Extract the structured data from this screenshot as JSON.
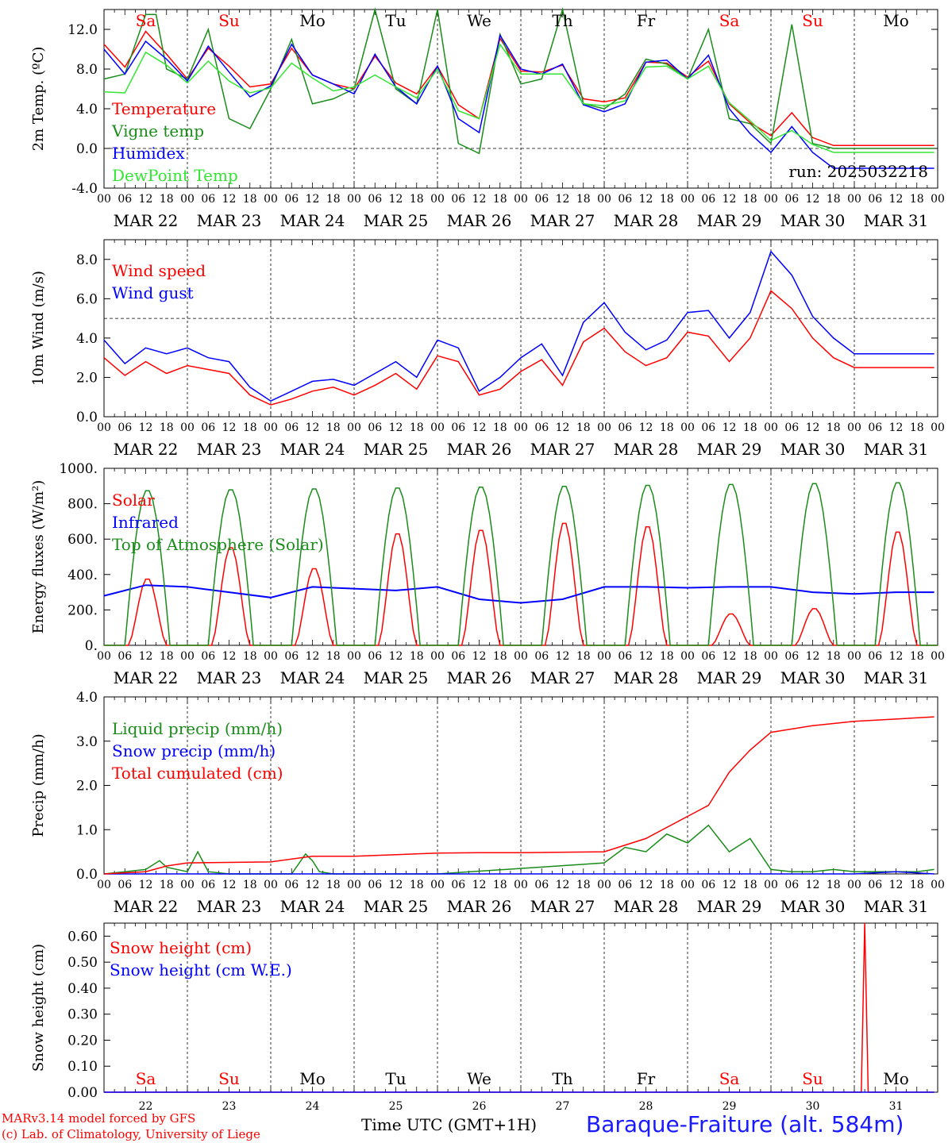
{
  "days": [
    {
      "date": "MAR 22",
      "day": "Sa",
      "weekend": true,
      "num": "22"
    },
    {
      "date": "MAR 23",
      "day": "Su",
      "weekend": true,
      "num": "23"
    },
    {
      "date": "MAR 24",
      "day": "Mo",
      "weekend": false,
      "num": "24"
    },
    {
      "date": "MAR 25",
      "day": "Tu",
      "weekend": false,
      "num": "25"
    },
    {
      "date": "MAR 26",
      "day": "We",
      "weekend": false,
      "num": "26"
    },
    {
      "date": "MAR 27",
      "day": "Th",
      "weekend": false,
      "num": "27"
    },
    {
      "date": "MAR 28",
      "day": "Fr",
      "weekend": false,
      "num": "28"
    },
    {
      "date": "MAR 29",
      "day": "Sa",
      "weekend": true,
      "num": "29"
    },
    {
      "date": "MAR 30",
      "day": "Su",
      "weekend": true,
      "num": "30"
    },
    {
      "date": "MAR 31",
      "day": "Mo",
      "weekend": false,
      "num": "31"
    }
  ],
  "hour_ticks": [
    "00",
    "06",
    "12",
    "18"
  ],
  "colors": {
    "red": "#ff0000",
    "darkgreen": "#1a8c1a",
    "blue": "#0000ff",
    "lightgreen": "#33e633"
  },
  "run_label": "run: 2025032218",
  "footer": {
    "model": "MARv3.14 model forced by GFS",
    "copyright": "(c) Lab. of Climatology, University of Liege",
    "xlabel": "Time UTC (GMT+1H)",
    "station": "Baraque-Fraiture (alt. 584m)"
  },
  "chart_data": [
    {
      "type": "line",
      "ylabel": "2m Temp. (ºC)",
      "ylim": [
        -4,
        14
      ],
      "yticks": [
        "-4.0",
        "0.0",
        "4.0",
        "8.0",
        "12.0"
      ],
      "ytick_values": [
        -4,
        0,
        4,
        8,
        12
      ],
      "reference_line": 0,
      "x_unit": "hours since MAR 22 00 UTC",
      "series": [
        {
          "name": "Temperature",
          "color": "red",
          "x": [
            0,
            6,
            12,
            18,
            24,
            30,
            36,
            42,
            48,
            54,
            60,
            66,
            72,
            78,
            84,
            90,
            96,
            102,
            108,
            114,
            120,
            126,
            132,
            138,
            144,
            150,
            156,
            162,
            168,
            174,
            180,
            186,
            192,
            198,
            204,
            210,
            216,
            222,
            228,
            234,
            239
          ],
          "y": [
            10.5,
            8.2,
            11.8,
            9.5,
            7.0,
            10.1,
            8.3,
            6.2,
            6.5,
            10.1,
            7.4,
            6.5,
            6.0,
            9.3,
            6.6,
            5.5,
            8.3,
            4.4,
            3.0,
            11.1,
            7.8,
            7.7,
            8.4,
            5.0,
            4.7,
            5.1,
            8.7,
            8.6,
            7.2,
            8.8,
            4.5,
            2.6,
            1.3,
            3.6,
            1.1,
            0.3,
            0.3,
            0.3,
            0.3,
            0.3,
            0.3
          ]
        },
        {
          "name": "Vigne temp",
          "color": "darkgreen",
          "x": [
            0,
            6,
            9,
            12,
            15,
            18,
            24,
            30,
            36,
            42,
            48,
            54,
            60,
            66,
            72,
            78,
            84,
            90,
            96,
            102,
            108,
            114,
            120,
            126,
            132,
            138,
            144,
            150,
            156,
            162,
            168,
            174,
            180,
            186,
            192,
            198,
            204,
            210,
            216,
            222,
            228,
            234,
            239
          ],
          "y": [
            7.0,
            7.5,
            10.5,
            13.5,
            13.5,
            8.0,
            7.0,
            12.0,
            3.0,
            2.0,
            6.0,
            11.0,
            4.5,
            5.0,
            6.0,
            14.0,
            6.0,
            4.5,
            14.0,
            0.5,
            -0.5,
            11.5,
            6.5,
            7.0,
            14.0,
            4.5,
            4.0,
            5.5,
            9.0,
            8.5,
            7.0,
            12.0,
            3.0,
            2.5,
            0.5,
            12.5,
            0.5,
            0.0,
            0.0,
            0.0,
            0.0,
            0.0,
            0.0
          ]
        },
        {
          "name": "Humidex",
          "color": "blue",
          "x": [
            0,
            6,
            12,
            18,
            24,
            30,
            36,
            42,
            48,
            54,
            60,
            66,
            72,
            78,
            84,
            90,
            96,
            102,
            108,
            114,
            120,
            126,
            132,
            138,
            144,
            150,
            156,
            162,
            168,
            174,
            180,
            186,
            192,
            198,
            204,
            210,
            216,
            222,
            228,
            234,
            239
          ],
          "y": [
            10.0,
            7.5,
            10.8,
            9.0,
            6.8,
            10.3,
            7.7,
            5.2,
            6.3,
            10.5,
            7.4,
            6.5,
            5.5,
            9.5,
            6.2,
            4.5,
            8.3,
            3.0,
            1.6,
            11.4,
            8.0,
            7.5,
            8.5,
            4.4,
            3.7,
            4.5,
            8.7,
            8.9,
            7.0,
            9.4,
            4.0,
            1.5,
            -0.4,
            2.2,
            -0.4,
            -2.0,
            -2.0,
            -2.0,
            -2.0,
            -2.0,
            -2.0
          ]
        },
        {
          "name": "DewPoint Temp",
          "color": "lightgreen",
          "x": [
            0,
            6,
            12,
            18,
            24,
            30,
            36,
            42,
            48,
            54,
            60,
            66,
            72,
            78,
            84,
            90,
            96,
            102,
            108,
            114,
            120,
            126,
            132,
            138,
            144,
            150,
            156,
            162,
            168,
            174,
            180,
            186,
            192,
            198,
            204,
            210,
            216,
            222,
            228,
            234,
            239
          ],
          "y": [
            5.7,
            5.6,
            9.7,
            8.4,
            6.6,
            8.8,
            6.8,
            5.6,
            6.1,
            8.6,
            7.1,
            5.8,
            6.2,
            7.4,
            6.2,
            5.1,
            8.0,
            3.8,
            3.0,
            10.5,
            7.5,
            7.5,
            7.5,
            4.5,
            4.3,
            4.8,
            8.2,
            8.3,
            7.0,
            8.3,
            4.6,
            2.8,
            0.8,
            1.8,
            0.4,
            -0.4,
            -0.4,
            -0.4,
            -0.4,
            -0.4,
            -0.4
          ]
        }
      ]
    },
    {
      "type": "line",
      "ylabel": "10m Wind (m/s)",
      "ylim": [
        0,
        9
      ],
      "yticks": [
        "0.0",
        "2.0",
        "4.0",
        "6.0",
        "8.0"
      ],
      "ytick_values": [
        0,
        2,
        4,
        6,
        8
      ],
      "reference_line": 5,
      "x_unit": "hours since MAR 22 00 UTC",
      "series": [
        {
          "name": "Wind speed",
          "color": "red",
          "x": [
            0,
            6,
            12,
            18,
            24,
            30,
            36,
            42,
            48,
            54,
            60,
            66,
            72,
            78,
            84,
            90,
            96,
            102,
            108,
            114,
            120,
            126,
            132,
            138,
            144,
            150,
            156,
            162,
            168,
            174,
            180,
            186,
            192,
            198,
            204,
            210,
            216,
            222,
            228,
            234,
            239
          ],
          "y": [
            3.0,
            2.1,
            2.8,
            2.2,
            2.6,
            2.4,
            2.2,
            1.1,
            0.6,
            0.9,
            1.3,
            1.5,
            1.1,
            1.6,
            2.2,
            1.4,
            3.1,
            2.8,
            1.1,
            1.4,
            2.3,
            2.9,
            1.6,
            3.8,
            4.5,
            3.3,
            2.6,
            3.0,
            4.3,
            4.1,
            2.8,
            4.0,
            6.4,
            5.5,
            4.0,
            3.0,
            2.5,
            2.5,
            2.5,
            2.5,
            2.5
          ]
        },
        {
          "name": "Wind gust",
          "color": "blue",
          "x": [
            0,
            6,
            12,
            18,
            24,
            30,
            36,
            42,
            48,
            54,
            60,
            66,
            72,
            78,
            84,
            90,
            96,
            102,
            108,
            114,
            120,
            126,
            132,
            138,
            144,
            150,
            156,
            162,
            168,
            174,
            180,
            186,
            192,
            198,
            204,
            210,
            216,
            222,
            228,
            234,
            239
          ],
          "y": [
            3.9,
            2.7,
            3.5,
            3.2,
            3.5,
            3.0,
            2.8,
            1.5,
            0.8,
            1.3,
            1.8,
            1.9,
            1.6,
            2.2,
            2.8,
            2.0,
            3.9,
            3.5,
            1.3,
            2.0,
            3.0,
            3.7,
            2.1,
            4.8,
            5.8,
            4.3,
            3.4,
            3.9,
            5.3,
            5.4,
            4.0,
            5.3,
            8.4,
            7.2,
            5.1,
            4.0,
            3.2,
            3.2,
            3.2,
            3.2,
            3.2
          ]
        }
      ]
    },
    {
      "type": "line",
      "ylabel": "Energy fluxes (W/m²)",
      "ylim": [
        0,
        1000
      ],
      "yticks": [
        "0.",
        "200.",
        "400.",
        "600.",
        "800.",
        "1000."
      ],
      "ytick_values": [
        0,
        200,
        400,
        600,
        800,
        1000
      ],
      "x_unit": "hours since MAR 22 00 UTC",
      "series": [
        {
          "name": "Solar",
          "color": "red",
          "daily_peak": [
            380,
            560,
            440,
            640,
            660,
            700,
            680,
            180,
            210,
            650
          ]
        },
        {
          "name": "Infrared",
          "color": "blue",
          "x": [
            0,
            12,
            24,
            36,
            48,
            60,
            72,
            84,
            96,
            108,
            120,
            132,
            144,
            156,
            168,
            180,
            192,
            204,
            216,
            228,
            239
          ],
          "y": [
            280,
            340,
            330,
            300,
            270,
            330,
            320,
            310,
            330,
            260,
            240,
            260,
            330,
            330,
            325,
            330,
            330,
            300,
            290,
            300,
            300
          ]
        },
        {
          "name": "Top of Atmosphere (Solar)",
          "color": "darkgreen",
          "daily_peak": [
            880,
            885,
            890,
            895,
            900,
            905,
            910,
            915,
            920,
            925
          ]
        }
      ]
    },
    {
      "type": "line",
      "ylabel": "Precip (mm/h)",
      "ylim": [
        0,
        4
      ],
      "yticks": [
        "0.0",
        "1.0",
        "2.0",
        "3.0",
        "4.0"
      ],
      "ytick_values": [
        0,
        1,
        2,
        3,
        4
      ],
      "x_unit": "hours since MAR 22 00 UTC",
      "series": [
        {
          "name": "Liquid precip (mm/h)",
          "color": "darkgreen",
          "x": [
            0,
            6,
            12,
            16,
            18,
            24,
            27,
            30,
            36,
            42,
            48,
            54,
            58,
            60,
            62,
            66,
            72,
            96,
            144,
            150,
            156,
            162,
            168,
            174,
            180,
            186,
            192,
            198,
            204,
            210,
            216,
            222,
            228,
            234,
            239
          ],
          "y": [
            0,
            0.05,
            0.1,
            0.3,
            0.15,
            0.05,
            0.5,
            0.05,
            0,
            0,
            0,
            0,
            0.45,
            0.3,
            0.05,
            0,
            0,
            0,
            0.25,
            0.6,
            0.5,
            0.9,
            0.7,
            1.1,
            0.5,
            0.8,
            0.1,
            0.05,
            0.05,
            0.1,
            0.05,
            0.05,
            0.05,
            0.05,
            0.1
          ]
        },
        {
          "name": "Snow precip (mm/h)",
          "color": "blue",
          "x": [
            0,
            120,
            216,
            228,
            239
          ],
          "y": [
            0,
            0,
            0,
            0.05,
            0
          ]
        },
        {
          "name": "Total cumulated (cm)",
          "color": "red",
          "x": [
            0,
            12,
            18,
            24,
            48,
            60,
            72,
            96,
            108,
            120,
            144,
            156,
            168,
            174,
            180,
            186,
            192,
            204,
            216,
            228,
            239
          ],
          "y": [
            0,
            0.05,
            0.18,
            0.25,
            0.27,
            0.4,
            0.4,
            0.47,
            0.48,
            0.48,
            0.5,
            0.8,
            1.3,
            1.55,
            2.3,
            2.8,
            3.2,
            3.35,
            3.45,
            3.5,
            3.55
          ]
        }
      ]
    },
    {
      "type": "line",
      "ylabel": "Snow height (cm)",
      "ylim": [
        0,
        0.65
      ],
      "yticks": [
        "0.00",
        "0.10",
        "0.20",
        "0.30",
        "0.40",
        "0.50",
        "0.60"
      ],
      "ytick_values": [
        0,
        0.1,
        0.2,
        0.3,
        0.4,
        0.5,
        0.6
      ],
      "x_unit": "hours since MAR 22 00 UTC",
      "series": [
        {
          "name": "Snow height (cm)",
          "color": "red",
          "x": [
            0,
            218,
            219,
            220,
            239
          ],
          "y": [
            0,
            0,
            0.65,
            0,
            0
          ]
        },
        {
          "name": "Snow height (cm W.E.)",
          "color": "blue",
          "x": [
            0,
            239
          ],
          "y": [
            0,
            0
          ]
        }
      ]
    }
  ]
}
